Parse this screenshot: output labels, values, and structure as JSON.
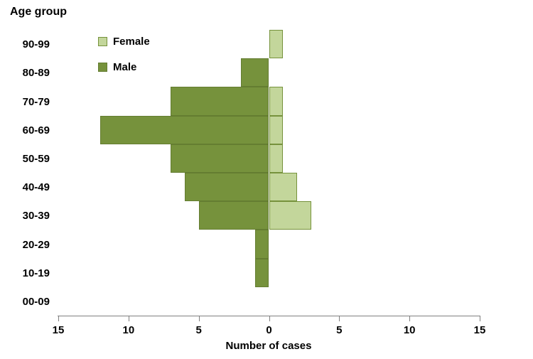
{
  "chart_data": {
    "type": "bar",
    "subtype": "population-pyramid",
    "title": "Age group",
    "xlabel": "Number of cases",
    "categories": [
      "00-09",
      "10-19",
      "20-29",
      "30-39",
      "40-49",
      "50-59",
      "60-69",
      "70-79",
      "80-89",
      "90-99"
    ],
    "series": [
      {
        "name": "Female",
        "color": "#C3D69B",
        "border_color": "#76923C",
        "values": [
          0,
          0,
          0,
          3,
          2,
          1,
          1,
          1,
          0,
          1
        ]
      },
      {
        "name": "Male",
        "color": "#76923C",
        "border_color": "#647D31",
        "values": [
          0,
          1,
          1,
          5,
          6,
          7,
          12,
          7,
          2,
          0
        ]
      }
    ],
    "x_axis": {
      "ticks": [
        -15,
        -10,
        -5,
        0,
        5,
        10,
        15
      ],
      "tick_labels": [
        "15",
        "10",
        "5",
        "0",
        "5",
        "10",
        "15"
      ],
      "max_abs": 15
    },
    "legend": {
      "position": "top-left",
      "entries": [
        "Female",
        "Male"
      ]
    },
    "grid": false,
    "axis_color": "#7f7f7f"
  },
  "labels": {
    "legend_female": "Female",
    "legend_male": "Male"
  }
}
